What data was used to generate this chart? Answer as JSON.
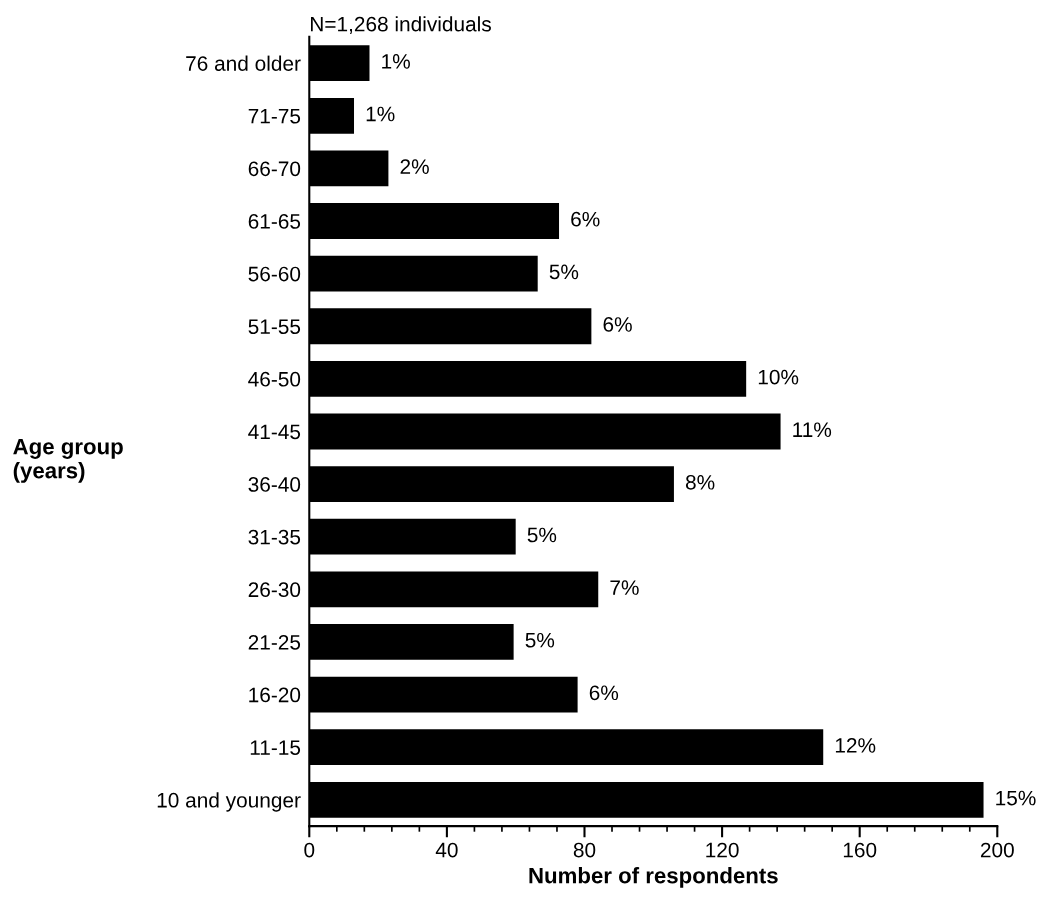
{
  "chart_data": {
    "type": "bar",
    "orientation": "horizontal",
    "title": "N=1,268 individuals",
    "xlabel": "Number of respondents",
    "ylabel": "Age group\n(years)",
    "categories": [
      "76 and older",
      "71-75",
      "66-70",
      "61-65",
      "56-60",
      "51-55",
      "46-50",
      "41-45",
      "36-40",
      "31-35",
      "26-30",
      "21-25",
      "16-20",
      "11-15",
      "10 and younger"
    ],
    "values": [
      17.5,
      13,
      23,
      72.6,
      66.4,
      82,
      127,
      137,
      106,
      60,
      84,
      59.4,
      78,
      149.4,
      196
    ],
    "annotations": [
      {
        "text": "1%",
        "x": 17.5,
        "y": "76 and older"
      },
      {
        "text": "1%",
        "x": 13,
        "y": "71-75"
      },
      {
        "text": "2%",
        "x": 23,
        "y": "66-70"
      },
      {
        "text": "6%",
        "x": 72.6,
        "y": "61-65"
      },
      {
        "text": "5%",
        "x": 66.4,
        "y": "56-60"
      },
      {
        "text": "6%",
        "x": 82,
        "y": "51-55"
      },
      {
        "text": "10%",
        "x": 127,
        "y": "46-50"
      },
      {
        "text": "11%",
        "x": 137,
        "y": "41-45"
      },
      {
        "text": "8%",
        "x": 106,
        "y": "36-40"
      },
      {
        "text": "5%",
        "x": 60,
        "y": "31-35"
      },
      {
        "text": "7%",
        "x": 84,
        "y": "26-30"
      },
      {
        "text": "5%",
        "x": 59.4,
        "y": "21-25"
      },
      {
        "text": "6%",
        "x": 78,
        "y": "16-20"
      },
      {
        "text": "12%",
        "x": 149.4,
        "y": "11-15"
      },
      {
        "text": "15%",
        "x": 196,
        "y": "10 and younger"
      }
    ],
    "color": "#000000",
    "xlim": [
      0,
      200
    ],
    "xticks": [
      0,
      {
        "value": 8,
        "label": null
      },
      {
        "value": 16,
        "label": null
      },
      {
        "value": 24,
        "label": null
      },
      {
        "value": 32,
        "label": null
      },
      40,
      {
        "value": 48,
        "label": null
      },
      {
        "value": 56,
        "label": null
      },
      {
        "value": 64,
        "label": null
      },
      {
        "value": 72,
        "label": null
      },
      80,
      {
        "value": 88,
        "label": null
      },
      {
        "value": 96,
        "label": null
      },
      {
        "value": 104,
        "label": null
      },
      {
        "value": 112,
        "label": null
      },
      120,
      {
        "value": 128,
        "label": null
      },
      {
        "value": 136,
        "label": null
      },
      {
        "value": 144,
        "label": null
      },
      {
        "value": 152,
        "label": null
      },
      160,
      {
        "value": 168,
        "label": null
      },
      {
        "value": 176,
        "label": null
      },
      {
        "value": 184,
        "label": null
      },
      {
        "value": 192,
        "label": null
      },
      200
    ],
    "grid": false,
    "legend": false
  }
}
